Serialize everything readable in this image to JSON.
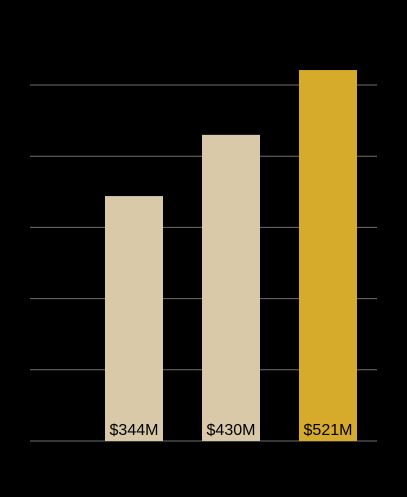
{
  "chart_data": {
    "type": "bar",
    "categories": [
      null,
      null,
      null
    ],
    "values": [
      344,
      430,
      521
    ],
    "value_labels": [
      "$344M",
      "$430M",
      "$521M"
    ],
    "colors": [
      "#d9c9a9",
      "#d9c9a9",
      "#d6aa2b"
    ],
    "ylim": [
      0,
      550
    ],
    "yticks": [
      0,
      100,
      200,
      300,
      400,
      500
    ],
    "grid": true
  }
}
